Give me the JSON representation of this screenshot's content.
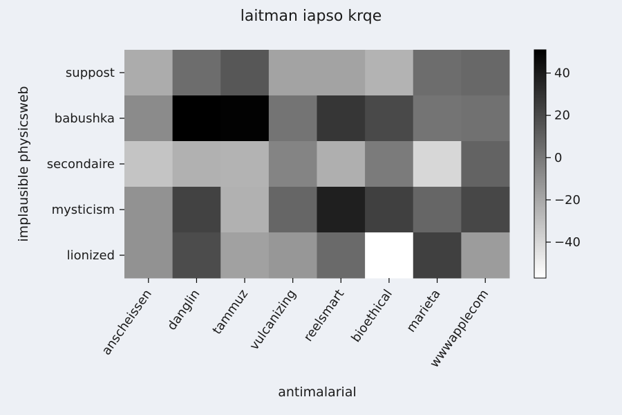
{
  "chart_data": {
    "type": "heatmap",
    "title": "laitman iapso krqe",
    "xlabel": "antimalarial",
    "ylabel": "implausible physicsweb",
    "x_categories": [
      "anscheissen",
      "danglin",
      "tammuz",
      "vulcanizing",
      "reelsmart",
      "bioethical",
      "marieta",
      "wwwapplecom"
    ],
    "y_categories": [
      "suppost",
      "babushka",
      "secondaire",
      "mysticism",
      "lionized"
    ],
    "values": [
      [
        -22,
        5,
        14,
        -18,
        -18,
        -25,
        5,
        7
      ],
      [
        -8,
        51,
        50,
        2,
        28,
        20,
        2,
        3
      ],
      [
        -32,
        -24,
        -25,
        -5,
        -23,
        -1,
        -40,
        9
      ],
      [
        -11,
        23,
        -24,
        8,
        38,
        24,
        8,
        21
      ],
      [
        -11,
        19,
        -17,
        -13,
        6,
        -57,
        24,
        -15
      ]
    ],
    "colorbar": {
      "min": -57,
      "max": 51,
      "ticks": [
        40,
        20,
        0,
        -20,
        -40
      ],
      "tick_labels": [
        "40",
        "20",
        "0",
        "−20",
        "−40"
      ]
    },
    "colormap": "Greys",
    "colors": {
      "background": "#edf0f5",
      "low": "#ffffff",
      "high": "#000000"
    },
    "grid": false,
    "legend": "colorbar-right"
  }
}
